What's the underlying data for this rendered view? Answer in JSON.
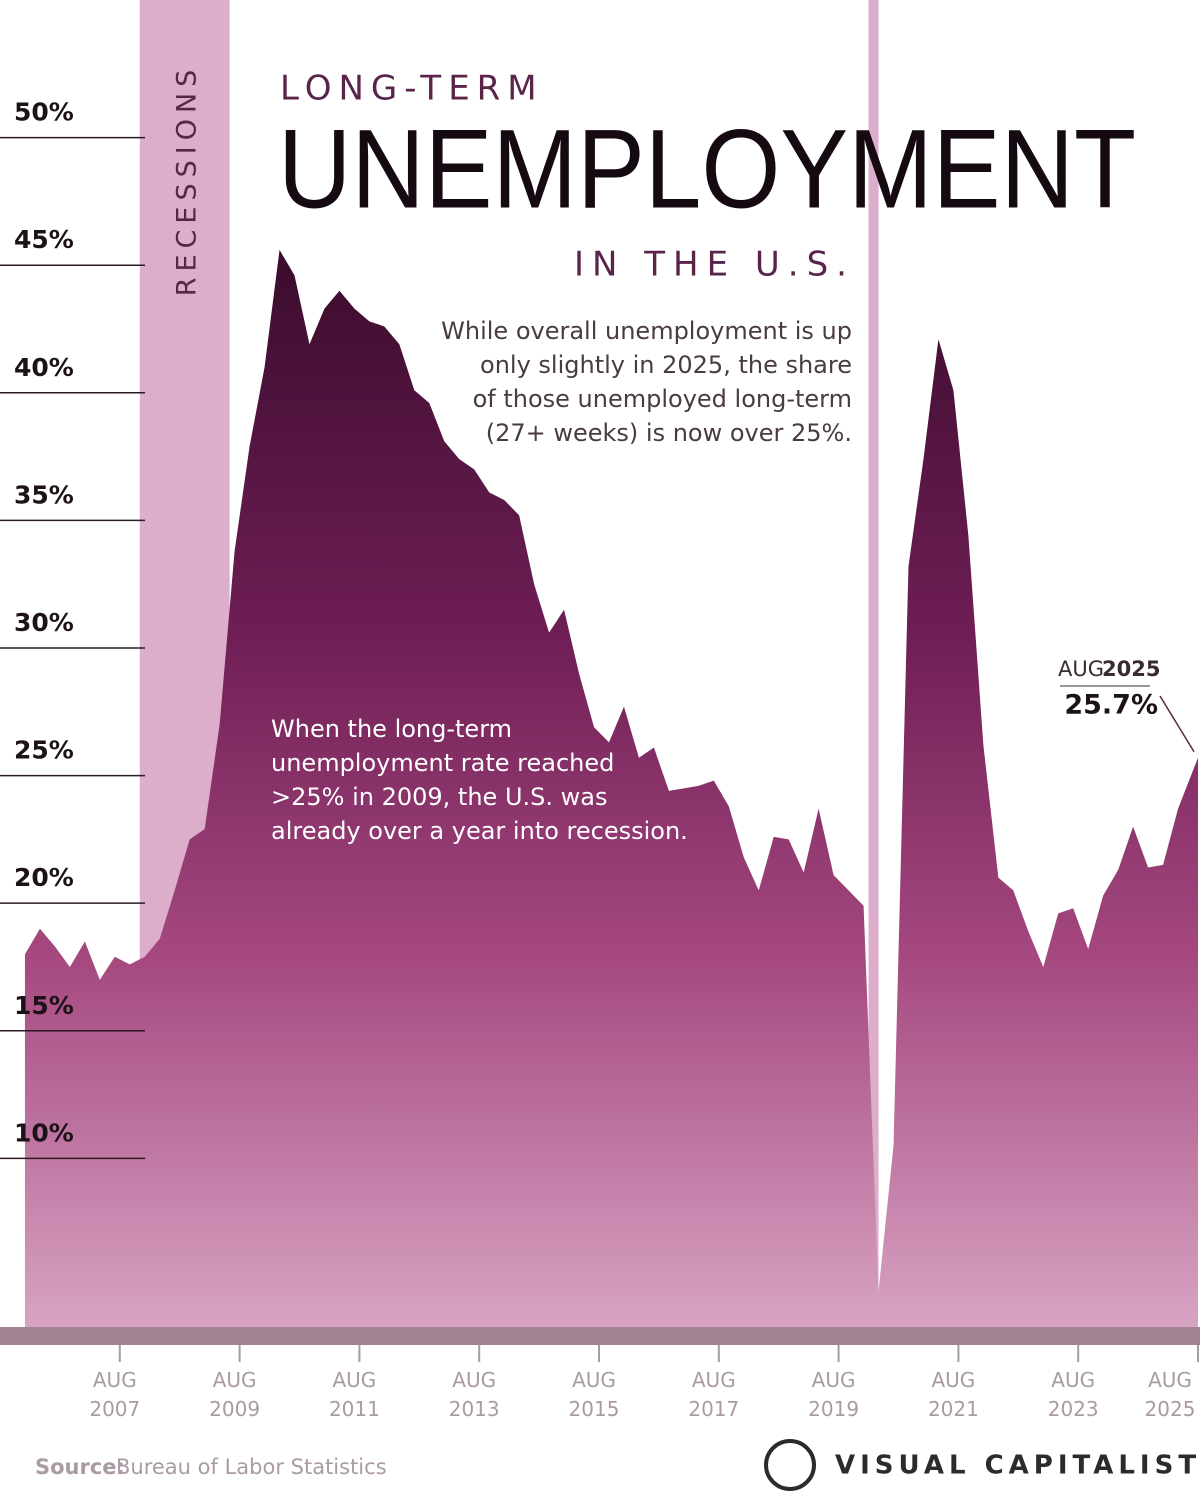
{
  "chart_data": {
    "type": "area",
    "title_top": "LONG-TERM",
    "title": "UNEMPLOYMENT",
    "title_bottom": "IN THE U.S.",
    "description": [
      "While overall unemployment is up",
      "only slightly in 2025, the share",
      "of those unemployed long-term",
      "(27+ weeks) is now over 25%."
    ],
    "annotation": [
      "When the long-term",
      "unemployment rate reached",
      ">25% in 2009, the U.S. was",
      "already over a year into recession."
    ],
    "recession_label": "RECESSIONS",
    "recessions": [
      {
        "start": "2007-12",
        "end": "2009-06"
      },
      {
        "start": "2020-02",
        "end": "2020-04"
      }
    ],
    "recession_color": "#dcaecb",
    "color": "#8a2a66",
    "x": [
      "2006-01",
      "2006-04",
      "2006-07",
      "2006-10",
      "2007-01",
      "2007-04",
      "2007-07",
      "2007-10",
      "2008-01",
      "2008-04",
      "2008-07",
      "2008-10",
      "2009-01",
      "2009-04",
      "2009-07",
      "2009-10",
      "2010-01",
      "2010-04",
      "2010-07",
      "2010-10",
      "2011-01",
      "2011-04",
      "2011-07",
      "2011-10",
      "2012-01",
      "2012-04",
      "2012-07",
      "2012-10",
      "2013-01",
      "2013-04",
      "2013-07",
      "2013-10",
      "2014-01",
      "2014-04",
      "2014-07",
      "2014-10",
      "2015-01",
      "2015-04",
      "2015-07",
      "2015-10",
      "2016-01",
      "2016-04",
      "2016-07",
      "2016-10",
      "2017-01",
      "2017-04",
      "2017-07",
      "2017-10",
      "2018-01",
      "2018-04",
      "2018-07",
      "2018-10",
      "2019-01",
      "2019-04",
      "2019-07",
      "2019-10",
      "2020-01",
      "2020-04",
      "2020-07",
      "2020-10",
      "2021-01",
      "2021-04",
      "2021-07",
      "2021-10",
      "2022-01",
      "2022-04",
      "2022-07",
      "2022-10",
      "2023-01",
      "2023-04",
      "2023-07",
      "2023-10",
      "2024-01",
      "2024-04",
      "2024-07",
      "2024-10",
      "2025-01",
      "2025-04",
      "2025-08"
    ],
    "values": [
      18.0,
      19.0,
      18.3,
      17.5,
      18.5,
      17.0,
      17.9,
      17.6,
      17.9,
      18.6,
      20.5,
      22.5,
      22.9,
      27.0,
      33.8,
      37.9,
      41.0,
      45.6,
      44.6,
      41.9,
      43.3,
      44.0,
      43.3,
      42.8,
      42.6,
      41.9,
      40.1,
      39.6,
      38.1,
      37.4,
      37.0,
      36.1,
      35.8,
      35.2,
      32.5,
      30.6,
      31.5,
      29.0,
      26.9,
      26.3,
      27.7,
      25.7,
      26.1,
      24.4,
      24.5,
      24.6,
      24.8,
      23.8,
      21.8,
      20.5,
      22.6,
      22.5,
      21.2,
      23.7,
      21.1,
      20.5,
      19.9,
      4.8,
      10.5,
      33.2,
      37.4,
      42.1,
      40.1,
      34.4,
      26.2,
      21.0,
      20.5,
      18.9,
      17.5,
      19.6,
      19.8,
      18.2,
      20.3,
      21.3,
      23.0,
      21.4,
      21.5,
      23.7,
      25.7
    ],
    "value_labels": [
      null,
      null,
      null,
      null,
      null,
      null,
      null,
      null,
      null,
      null,
      null,
      null,
      null,
      null,
      null,
      null,
      null,
      null,
      null,
      null,
      null,
      null,
      null,
      null,
      null,
      null,
      null,
      null,
      null,
      null,
      null,
      null,
      null,
      null,
      null,
      null,
      null,
      null,
      null,
      null,
      null,
      null,
      null,
      null,
      null,
      null,
      null,
      null,
      null,
      null,
      null,
      null,
      null,
      null,
      null,
      null,
      null,
      null,
      null,
      null,
      null,
      null,
      null,
      null,
      null,
      null,
      null,
      null,
      null,
      null,
      null,
      null,
      null,
      null,
      null,
      null,
      null,
      null,
      "25.7%"
    ],
    "end_month": "AUG",
    "end_year": "2025",
    "xlim": [
      "2005-08",
      "2025-08"
    ],
    "xticks": [
      {
        "value": "2007-08",
        "label": "AUG 2007"
      },
      {
        "value": "2009-08",
        "label": "AUG 2009"
      },
      {
        "value": "2011-08",
        "label": "AUG 2011"
      },
      {
        "value": "2013-08",
        "label": "AUG 2013"
      },
      {
        "value": "2015-08",
        "label": "AUG 2015"
      },
      {
        "value": "2017-08",
        "label": "AUG 2017"
      },
      {
        "value": "2019-08",
        "label": "AUG 2019"
      },
      {
        "value": "2021-08",
        "label": "AUG 2021"
      },
      {
        "value": "2023-08",
        "label": "AUG 2023"
      },
      {
        "value": "2025-08",
        "label": "AUG 2025"
      }
    ],
    "ylim": [
      3,
      55
    ],
    "yticks": [
      {
        "value": 10,
        "label": "10%"
      },
      {
        "value": 15,
        "label": "15%"
      },
      {
        "value": 20,
        "label": "20%"
      },
      {
        "value": 25,
        "label": "25%"
      },
      {
        "value": 30,
        "label": "30%"
      },
      {
        "value": 35,
        "label": "35%"
      },
      {
        "value": 40,
        "label": "40%"
      },
      {
        "value": 45,
        "label": "45%"
      },
      {
        "value": 50,
        "label": "50%"
      }
    ],
    "source_label": "Source:",
    "source": "Bureau of Labor Statistics",
    "brand": "VISUAL CAPITALIST"
  }
}
